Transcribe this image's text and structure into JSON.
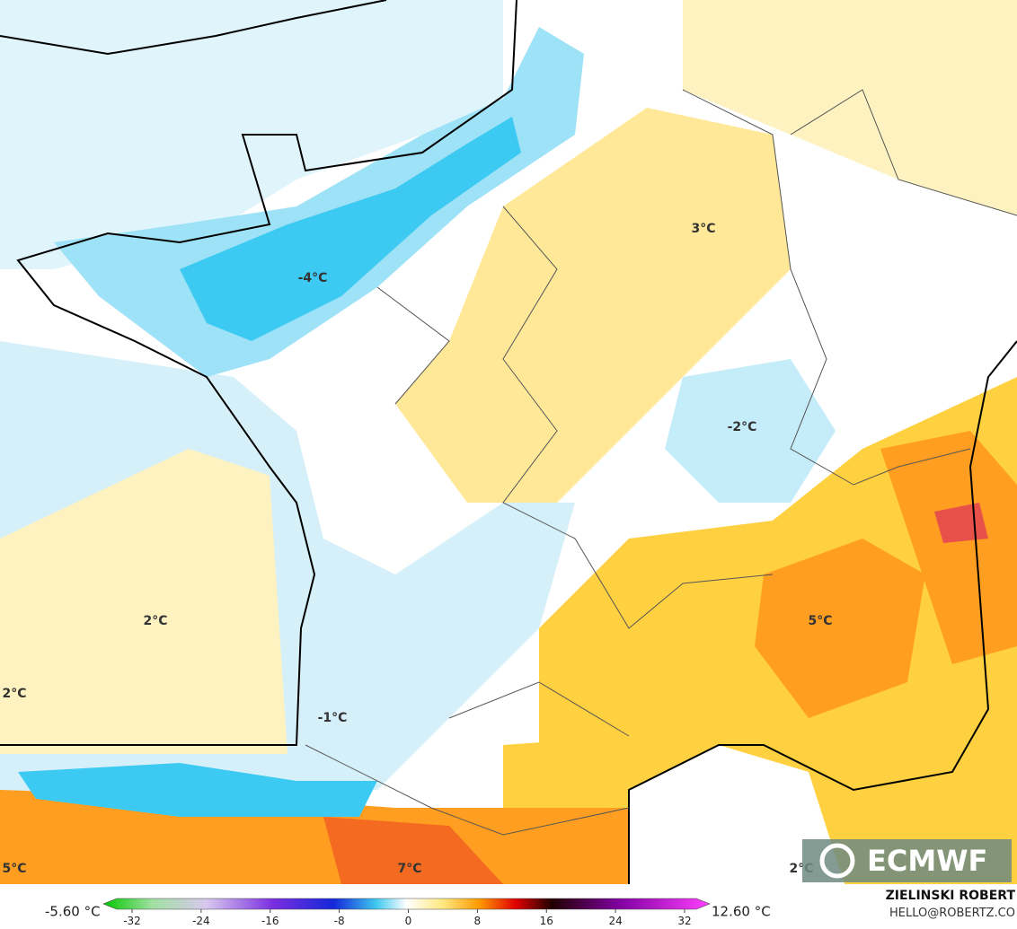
{
  "map": {
    "labels": [
      "-4°C",
      "3°C",
      "-2°C",
      "2°C",
      "2°C",
      "-1°C",
      "5°C",
      "5°C",
      "7°C",
      "2°C"
    ]
  },
  "logo": "ECMWF",
  "colorbar": {
    "min_label": "-5.60 °C",
    "max_label": "12.60 °C",
    "ticks": [
      -32,
      -24,
      -16,
      -8,
      0,
      8,
      16,
      24,
      32
    ]
  },
  "credit": {
    "name": "ZIELINSKI ROBERT",
    "email": "HELLO@ROBERTZ.CO"
  }
}
